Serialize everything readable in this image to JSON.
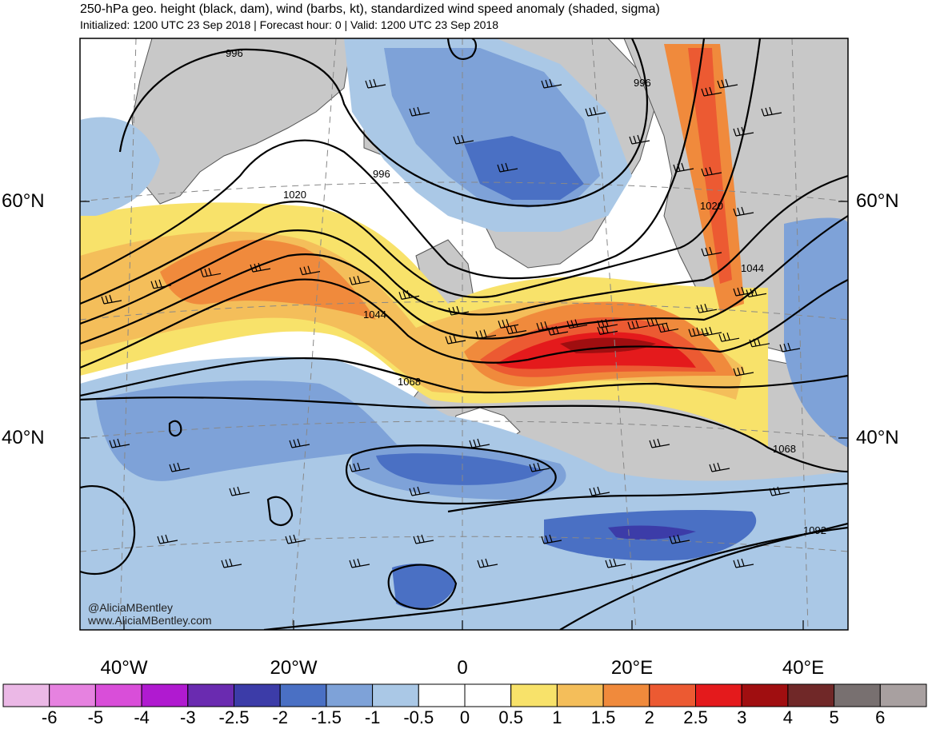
{
  "header": {
    "title": "250-hPa geo. height (black, dam), wind (barbs, kt), standardized wind speed anomaly (shaded, sigma)",
    "subtitle": "Initialized: 1200 UTC 23 Sep 2018 | Forecast hour: 0 | Valid: 1200 UTC 23 Sep 2018"
  },
  "map": {
    "lat_labels": [
      "60°N",
      "40°N"
    ],
    "lon_labels": [
      "40°W",
      "20°W",
      "0",
      "20°E",
      "40°E"
    ],
    "contour_labels": [
      "996",
      "996",
      "996",
      "1020",
      "1020",
      "1044",
      "1044",
      "1068",
      "1068",
      "1092"
    ],
    "land_color": "#c8c8c8",
    "coast_color": "#555555"
  },
  "colorbar": {
    "labels": [
      "-6",
      "-5",
      "-4",
      "-3",
      "-2.5",
      "-2",
      "-1.5",
      "-1",
      "-0.5",
      "0",
      "0.5",
      "1",
      "1.5",
      "2",
      "2.5",
      "3",
      "4",
      "5",
      "6"
    ],
    "colors": [
      "#ebb8e6",
      "#e682e0",
      "#d94ed9",
      "#b01ad0",
      "#6a2bb0",
      "#3c3ca8",
      "#4a70c4",
      "#7ea2d8",
      "#aac8e6",
      "#ffffff",
      "#ffffff",
      "#f8e26a",
      "#f4be5a",
      "#f08a3c",
      "#ec5a32",
      "#e41a1c",
      "#a00e10",
      "#702828",
      "#787070",
      "#a8a0a0"
    ]
  },
  "credit": {
    "handle": "@AliciaMBentley",
    "site": "www.AliciaMBentley.com"
  }
}
